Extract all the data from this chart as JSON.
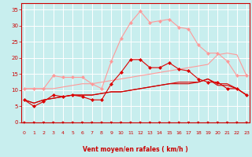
{
  "background_color": "#c8eeee",
  "grid_color": "#ffffff",
  "xlabel": "Vent moyen/en rafales ( km/h )",
  "xlabel_color": "#cc0000",
  "tick_color": "#cc0000",
  "x_ticks": [
    0,
    1,
    2,
    3,
    4,
    5,
    6,
    7,
    8,
    9,
    10,
    11,
    12,
    13,
    14,
    15,
    16,
    17,
    18,
    19,
    20,
    21,
    22,
    23
  ],
  "y_ticks": [
    0,
    5,
    10,
    15,
    20,
    25,
    30,
    35
  ],
  "ylim": [
    0,
    37
  ],
  "xlim": [
    -0.3,
    23.3
  ],
  "series": [
    {
      "color": "#ff9999",
      "lw": 0.8,
      "marker": "D",
      "ms": 2.0,
      "data_x": [
        0,
        1,
        2,
        3,
        4,
        5,
        6,
        7,
        8,
        9,
        10,
        11,
        12,
        13,
        14,
        15,
        16,
        17,
        18,
        19,
        20,
        21,
        22,
        23
      ],
      "data_y": [
        10.5,
        10.5,
        10.5,
        14.5,
        14.0,
        14.0,
        14.0,
        12.0,
        10.5,
        19.0,
        26.0,
        31.0,
        34.5,
        31.0,
        31.5,
        32.0,
        29.5,
        29.0,
        24.0,
        21.5,
        21.5,
        19.0,
        14.5,
        14.5
      ]
    },
    {
      "color": "#ff9999",
      "lw": 0.8,
      "marker": null,
      "ms": 0,
      "data_x": [
        0,
        1,
        2,
        3,
        4,
        5,
        6,
        7,
        8,
        9,
        10,
        11,
        12,
        13,
        14,
        15,
        16,
        17,
        18,
        19,
        20,
        21,
        22,
        23
      ],
      "data_y": [
        10.5,
        10.5,
        10.5,
        10.5,
        11.0,
        11.5,
        12.0,
        12.0,
        12.5,
        13.0,
        13.5,
        14.0,
        14.5,
        15.0,
        15.5,
        16.0,
        16.5,
        17.0,
        17.5,
        18.0,
        21.0,
        21.5,
        21.0,
        14.5
      ]
    },
    {
      "color": "#dd0000",
      "lw": 0.8,
      "marker": "D",
      "ms": 2.0,
      "data_x": [
        0,
        1,
        2,
        3,
        4,
        5,
        6,
        7,
        8,
        9,
        10,
        11,
        12,
        13,
        14,
        15,
        16,
        17,
        18,
        19,
        20,
        21,
        22,
        23
      ],
      "data_y": [
        7.0,
        5.0,
        6.5,
        8.5,
        8.0,
        8.5,
        8.0,
        7.0,
        7.0,
        12.0,
        15.5,
        19.5,
        19.5,
        17.0,
        17.0,
        18.5,
        16.5,
        16.0,
        13.5,
        12.5,
        12.5,
        10.5,
        10.5,
        8.5
      ]
    },
    {
      "color": "#dd0000",
      "lw": 0.8,
      "marker": null,
      "ms": 0,
      "data_x": [
        0,
        1,
        2,
        3,
        4,
        5,
        6,
        7,
        8,
        9,
        10,
        11,
        12,
        13,
        14,
        15,
        16,
        17,
        18,
        19,
        20,
        21,
        22,
        23
      ],
      "data_y": [
        7.0,
        6.0,
        7.0,
        7.5,
        8.0,
        8.5,
        8.5,
        8.5,
        9.0,
        9.5,
        9.5,
        10.0,
        10.5,
        11.0,
        11.5,
        12.0,
        12.5,
        12.5,
        12.5,
        13.5,
        12.0,
        12.0,
        10.5,
        8.5
      ]
    },
    {
      "color": "#cc0000",
      "lw": 0.8,
      "marker": null,
      "ms": 0,
      "data_x": [
        0,
        1,
        2,
        3,
        4,
        5,
        6,
        7,
        8,
        9,
        10,
        11,
        12,
        13,
        14,
        15,
        16,
        17,
        18,
        19,
        20,
        21,
        22,
        23
      ],
      "data_y": [
        7.0,
        6.0,
        7.0,
        7.5,
        8.0,
        8.5,
        8.5,
        8.5,
        9.0,
        9.5,
        9.5,
        10.0,
        10.5,
        11.0,
        11.5,
        12.0,
        12.0,
        12.0,
        12.5,
        13.5,
        11.5,
        11.5,
        10.5,
        8.5
      ]
    }
  ],
  "arrow_color": "#cc0000"
}
